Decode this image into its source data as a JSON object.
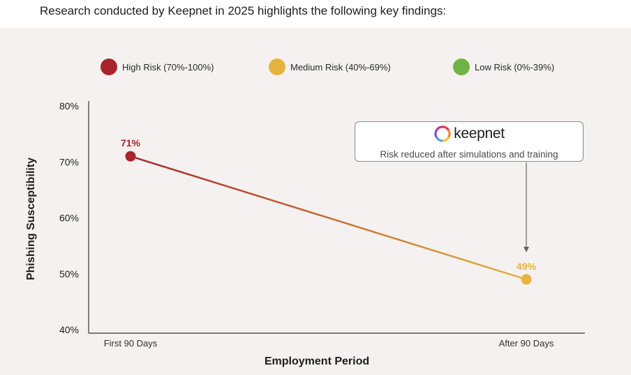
{
  "headline": "Research conducted by Keepnet in 2025 highlights the following key findings:",
  "legend": [
    {
      "label": "High Risk (70%-100%)",
      "color": "#a8232b"
    },
    {
      "label": "Medium Risk (40%-69%)",
      "color": "#e6b33c"
    },
    {
      "label": "Low Risk (0%-39%)",
      "color": "#6fb345"
    }
  ],
  "callout": {
    "logo_text": "keepnet",
    "logo_icon": "keepnet-logo-icon",
    "text": "Risk reduced after simulations and training"
  },
  "chart_data": {
    "type": "line",
    "categories": [
      "First 90 Days",
      "After 90 Days"
    ],
    "series": [
      {
        "values": [
          71,
          49
        ],
        "point_labels": [
          "71%",
          "49%"
        ],
        "point_colors": [
          "#a8232b",
          "#e6b33c"
        ]
      }
    ],
    "xlabel": "Employment Period",
    "ylabel": "Phishing Susceptibility",
    "ylim": [
      40,
      80
    ],
    "yticks": [
      80,
      70,
      60,
      50,
      40
    ],
    "ytick_labels": [
      "80%",
      "70%",
      "60%",
      "50%",
      "40%"
    ],
    "grid": false,
    "legend_position": "top"
  }
}
